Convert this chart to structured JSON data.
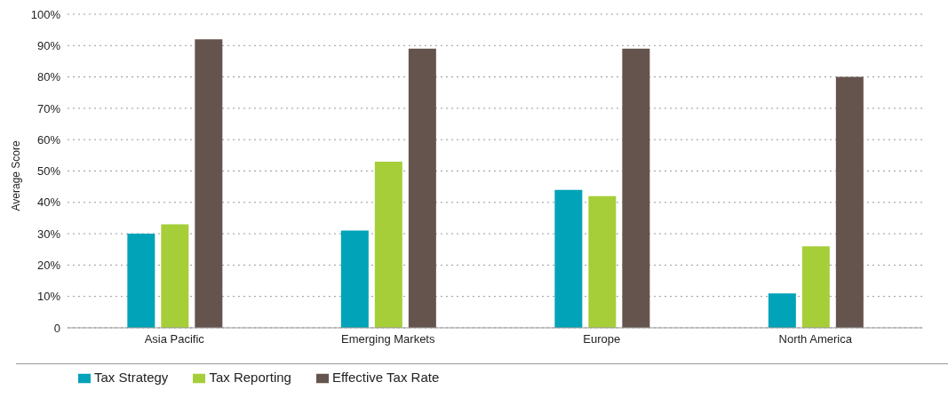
{
  "chart_data": {
    "type": "bar",
    "ylabel": "Average Score",
    "categories": [
      "Asia Pacific",
      "Emerging Markets",
      "Europe",
      "North America"
    ],
    "series": [
      {
        "name": "Tax Strategy",
        "color": "#00a3b8",
        "values": [
          30,
          31,
          44,
          11
        ]
      },
      {
        "name": "Tax Reporting",
        "color": "#a6ce39",
        "values": [
          33,
          53,
          42,
          26
        ]
      },
      {
        "name": "Effective Tax Rate",
        "color": "#65544d",
        "values": [
          92,
          89,
          89,
          80
        ]
      }
    ],
    "ylim": [
      0,
      100
    ],
    "yticks": [
      0,
      {
        "value": 10,
        "label": "10%"
      },
      {
        "value": 20,
        "label": "20%"
      },
      {
        "value": 30,
        "label": "30%"
      },
      {
        "value": 40,
        "label": "40%"
      },
      {
        "value": 50,
        "label": "50%"
      },
      {
        "value": 60,
        "label": "60%"
      },
      {
        "value": 70,
        "label": "70%"
      },
      {
        "value": 80,
        "label": "80%"
      },
      {
        "value": 90,
        "label": "90%"
      },
      {
        "value": 100,
        "label": "100%"
      }
    ],
    "grid": "y",
    "legend": "bottom left"
  }
}
